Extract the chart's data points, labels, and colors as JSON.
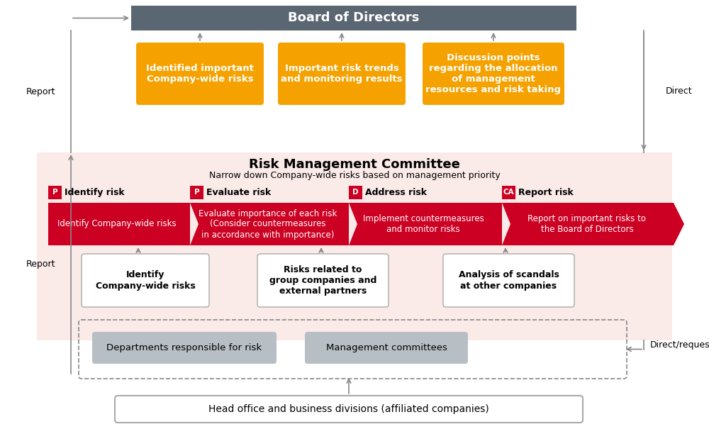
{
  "title": "Risk Management Committee",
  "subtitle": "Narrow down Company-wide risks based on management priority",
  "board_text": "Board of Directors",
  "board_color": "#5a6672",
  "orange_color": "#f5a200",
  "red_color": "#cc0022",
  "pink_bg": "#faeae8",
  "gray_box_color": "#b8bfc4",
  "arrow_color": "#888888",
  "orange_boxes": [
    "Identified important\nCompany-wide risks",
    "Important risk trends\nand monitoring results",
    "Discussion points\nregarding the allocation\nof management\nresources and risk taking"
  ],
  "pdca_labels": [
    "P",
    "P",
    "D",
    "CA"
  ],
  "pdca_titles": [
    "Identify risk",
    "Evaluate risk",
    "Address risk",
    "Report risk"
  ],
  "red_arrow_texts": [
    "Identify Company-wide risks",
    "Evaluate importance of each risk\n(Consider countermeasures\nin accordance with importance)",
    "Implement countermeasures\nand monitor risks",
    "Report on important risks to\nthe Board of Directors"
  ],
  "white_boxes": [
    "Identify\nCompany-wide risks",
    "Risks related to\ngroup companies and\nexternal partners",
    "Analysis of scandals\nat other companies"
  ],
  "bottom_boxes": [
    "Departments responsible for risk",
    "Management committees"
  ],
  "head_office_text": "Head office and business divisions (affiliated companies)",
  "report_label": "Report",
  "direct_label": "Direct",
  "direct_request_label": "Direct/request"
}
